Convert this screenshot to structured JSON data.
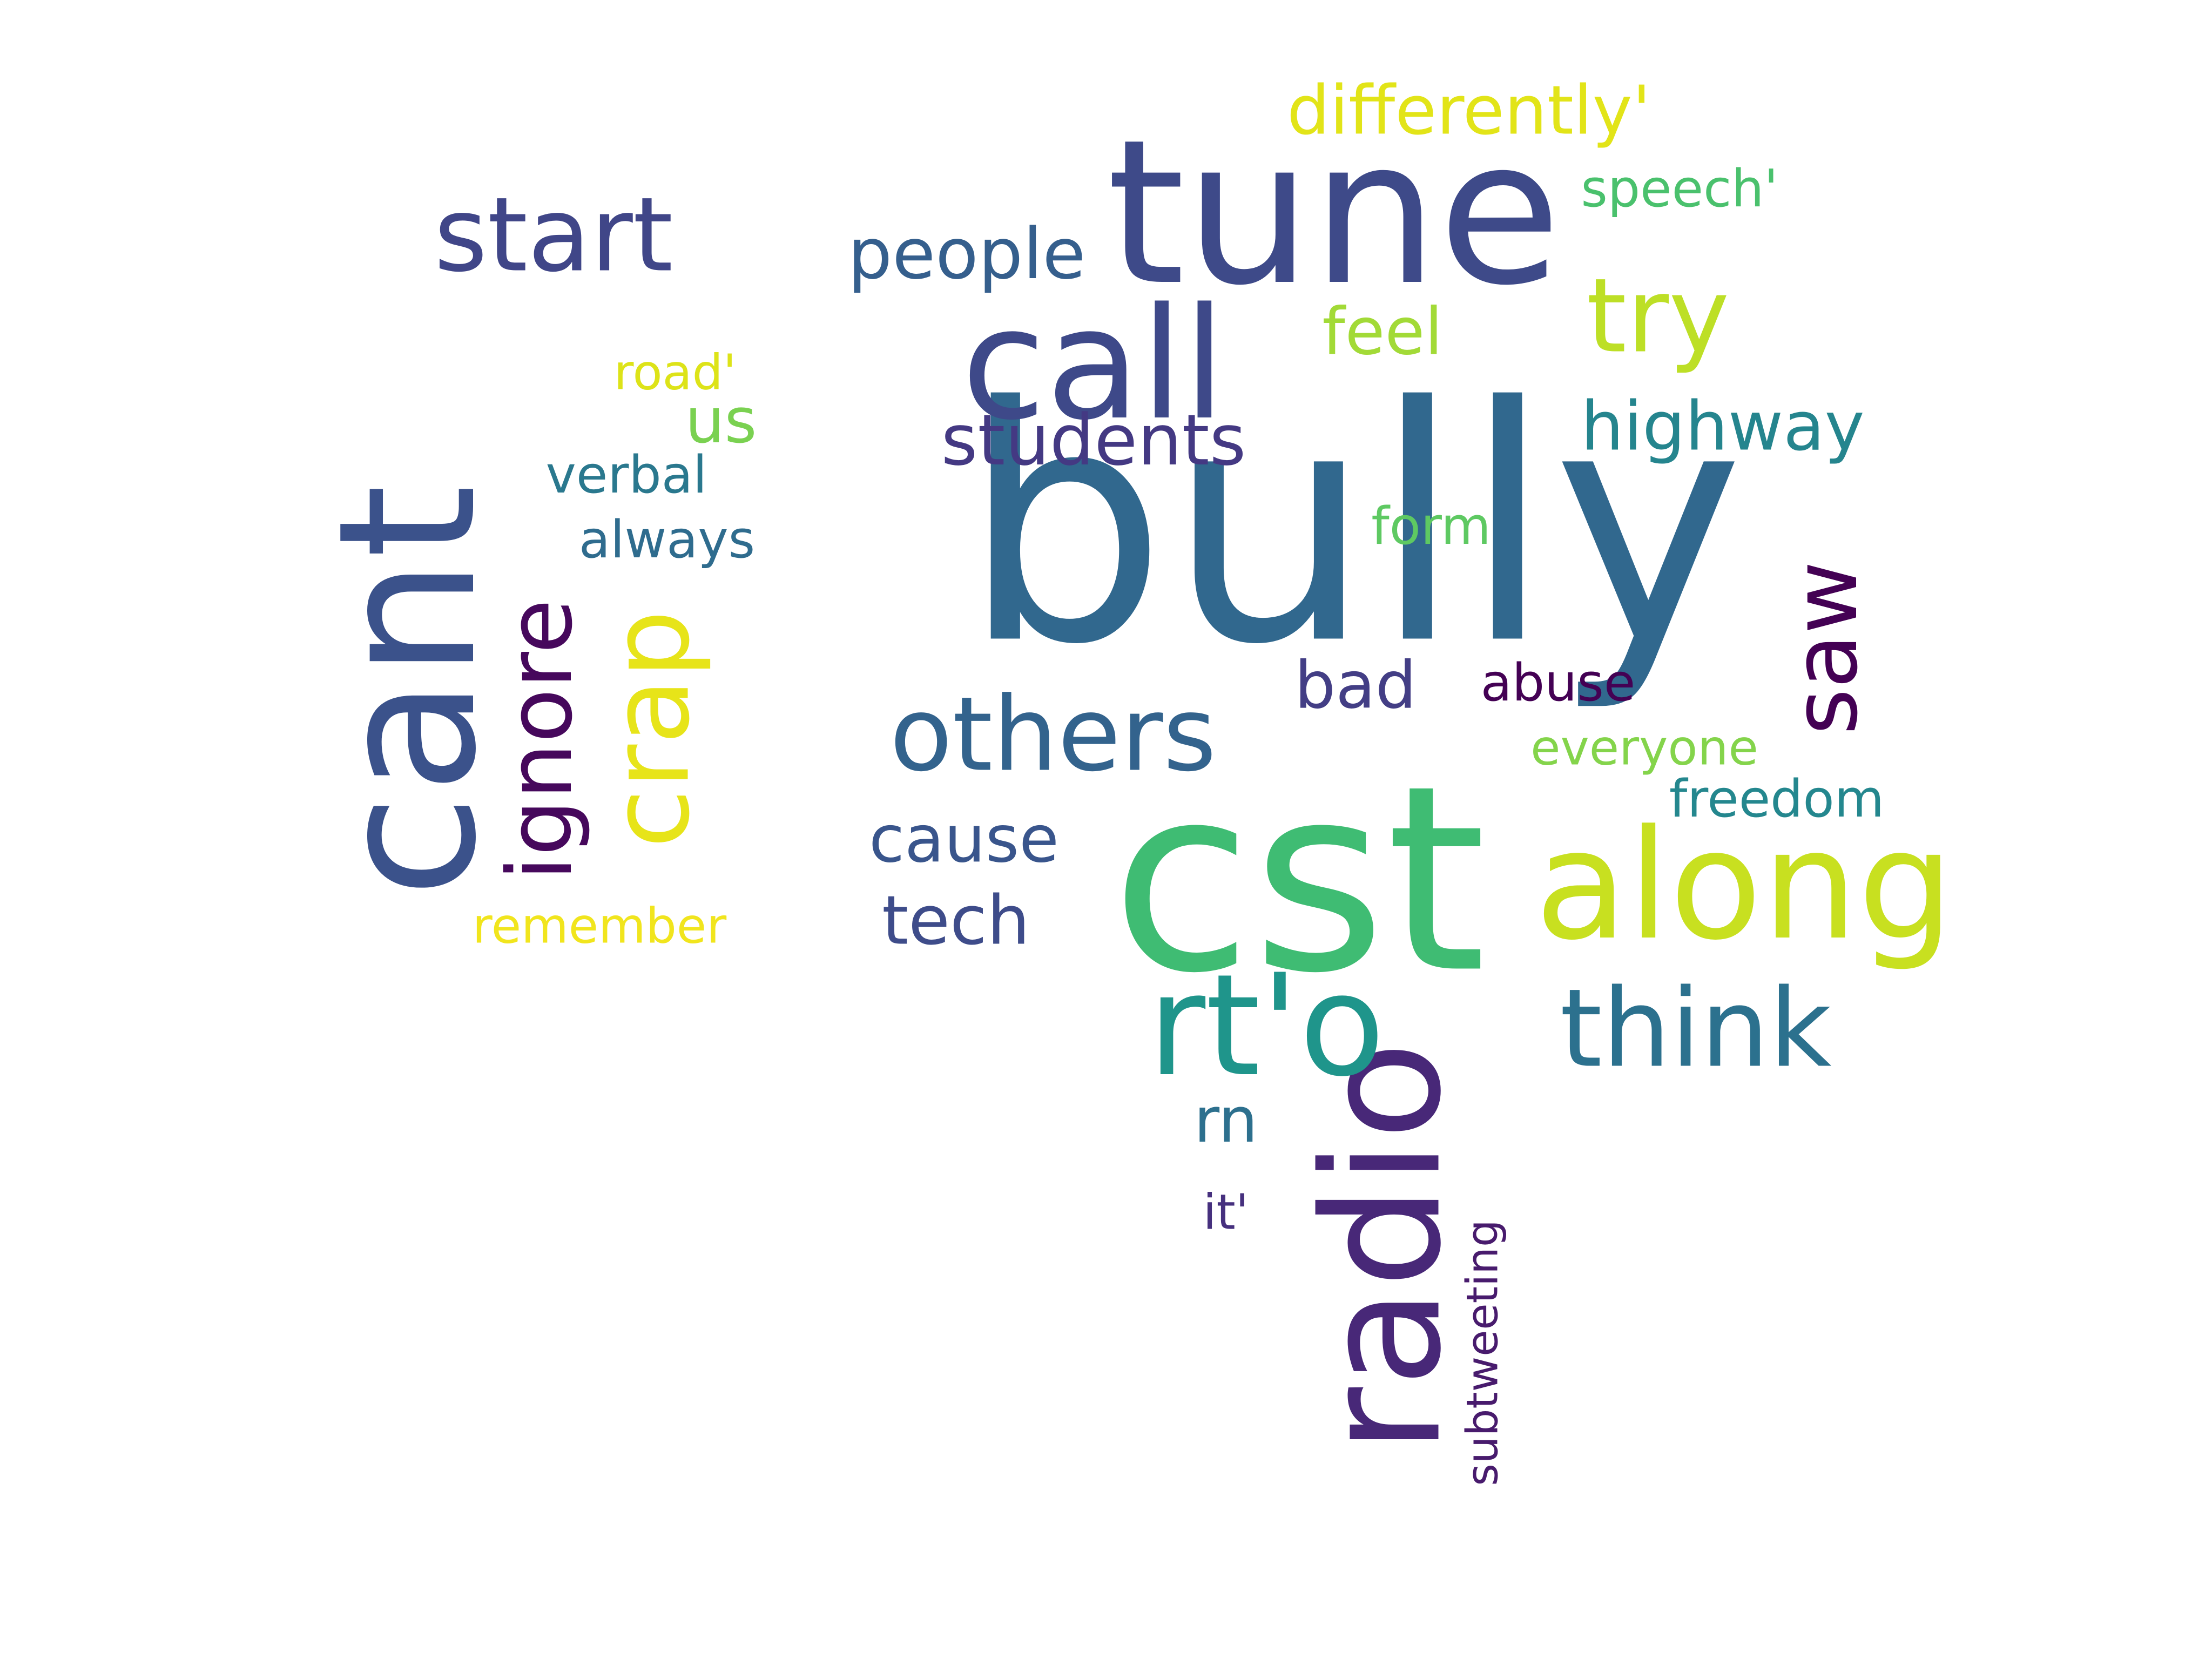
{
  "words": [
    {
      "text": "bully",
      "color": "#31688e"
    },
    {
      "text": "cst",
      "color": "#3fbc73"
    },
    {
      "text": "tune",
      "color": "#3e4a89"
    },
    {
      "text": "radio",
      "color": "#482878"
    },
    {
      "text": "cant",
      "color": "#3b528b"
    },
    {
      "text": "along",
      "color": "#c8e020"
    },
    {
      "text": "call",
      "color": "#3e4989"
    },
    {
      "text": "rt'o",
      "color": "#1f958b"
    },
    {
      "text": "others",
      "color": "#33638d"
    },
    {
      "text": "start",
      "color": "#404688"
    },
    {
      "text": "think",
      "color": "#2c718e"
    },
    {
      "text": "try",
      "color": "#bddf26"
    },
    {
      "text": "crap",
      "color": "#e7e419"
    },
    {
      "text": "ignore",
      "color": "#46085c"
    },
    {
      "text": "saw",
      "color": "#440154"
    },
    {
      "text": "students",
      "color": "#443983"
    },
    {
      "text": "highway",
      "color": "#25858e"
    },
    {
      "text": "people",
      "color": "#355f8d"
    },
    {
      "text": "differently'",
      "color": "#e2e418"
    },
    {
      "text": "cause",
      "color": "#39558c"
    },
    {
      "text": "tech",
      "color": "#3e4c8a"
    },
    {
      "text": "feel",
      "color": "#a2da37"
    },
    {
      "text": "bad",
      "color": "#433e85"
    },
    {
      "text": "us",
      "color": "#7ad151"
    },
    {
      "text": "rn",
      "color": "#2d708e"
    },
    {
      "text": "verbal",
      "color": "#2a788e"
    },
    {
      "text": "always",
      "color": "#2f6c8e"
    },
    {
      "text": "speech'",
      "color": "#4ac16d"
    },
    {
      "text": "form",
      "color": "#5ec962"
    },
    {
      "text": "abuse",
      "color": "#440154"
    },
    {
      "text": "everyone",
      "color": "#84d44b"
    },
    {
      "text": "freedom",
      "color": "#24878e"
    },
    {
      "text": "road'",
      "color": "#dde318"
    },
    {
      "text": "remember",
      "color": "#f1e51d"
    },
    {
      "text": "it'",
      "color": "#46307e"
    },
    {
      "text": "subtweeting",
      "color": "#481b6d"
    }
  ]
}
